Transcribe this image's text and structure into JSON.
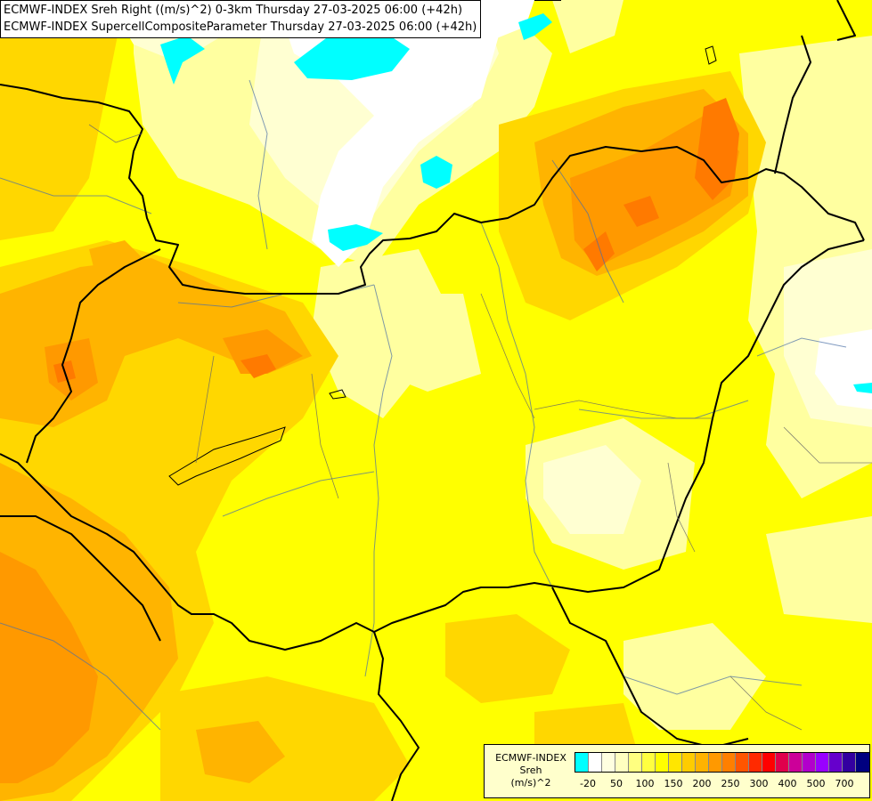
{
  "header": {
    "line1": "ECMWF-INDEX Sreh Right ((m/s)^2) 0-3km Thursday 27-03-2025 06:00 (+42h)",
    "line2": "ECMWF-INDEX SupercellCompositeParameter Thursday 27-03-2025 06:00 (+42h)"
  },
  "legend": {
    "line1": "ECMWF-INDEX",
    "line2": "Sreh",
    "line3": "(m/s)^2",
    "colors": [
      "#00ffff",
      "#ffffff",
      "#ffffe0",
      "#ffffc0",
      "#ffff80",
      "#ffff40",
      "#ffff00",
      "#ffe600",
      "#ffcc00",
      "#ffb300",
      "#ff9900",
      "#ff7f00",
      "#ff5500",
      "#ff2a00",
      "#ff0000",
      "#e0004c",
      "#cc0099",
      "#b200cc",
      "#9900ff",
      "#6600cc",
      "#3300a0",
      "#000080"
    ],
    "ticks": [
      "-20",
      "50",
      "100",
      "150",
      "200",
      "250",
      "300",
      "400",
      "500",
      "700"
    ]
  },
  "palette": {
    "base": "#ffff00",
    "light_yellow": "#ffffa0",
    "pale": "#ffffd2",
    "white": "#ffffff",
    "cyan": "#00ffff",
    "gold": "#ffd700",
    "orange_light": "#ffb400",
    "orange": "#ff9900",
    "orange_dark": "#ff7a00",
    "border": "#000000",
    "river": "#4a6fa5"
  }
}
